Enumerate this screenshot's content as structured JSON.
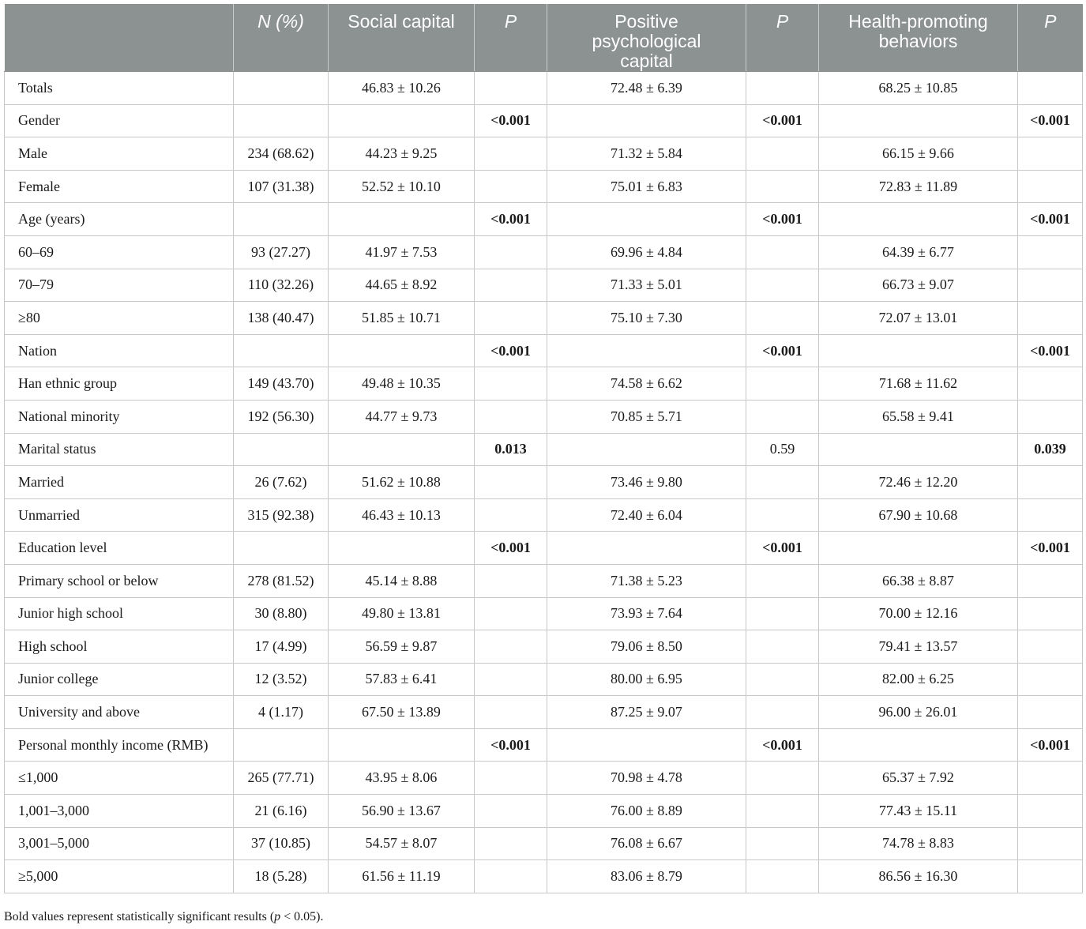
{
  "table": {
    "headers": [
      "",
      "N (%)",
      "Social capital",
      "P",
      "Positive psychological capital",
      "P",
      "Health-promoting behaviors",
      "P"
    ],
    "header_lines": [
      [
        ""
      ],
      [
        "N (%)"
      ],
      [
        "Social capital"
      ],
      [
        "P"
      ],
      [
        "Positive",
        "psychological",
        "capital"
      ],
      [
        "P"
      ],
      [
        "Health-promoting",
        "behaviors"
      ],
      [
        "P"
      ]
    ],
    "rows": [
      {
        "cells": [
          "Totals",
          "",
          "46.83 ± 10.26",
          "",
          "72.48 ± 6.39",
          "",
          "68.25 ± 10.85",
          ""
        ],
        "bold": []
      },
      {
        "cells": [
          "Gender",
          "",
          "",
          "<0.001",
          "",
          "<0.001",
          "",
          "<0.001"
        ],
        "bold": [
          3,
          5,
          7
        ]
      },
      {
        "cells": [
          "Male",
          "234 (68.62)",
          "44.23 ± 9.25",
          "",
          "71.32 ± 5.84",
          "",
          "66.15 ± 9.66",
          ""
        ],
        "bold": []
      },
      {
        "cells": [
          "Female",
          "107 (31.38)",
          "52.52 ± 10.10",
          "",
          "75.01 ± 6.83",
          "",
          "72.83 ± 11.89",
          ""
        ],
        "bold": []
      },
      {
        "cells": [
          "Age (years)",
          "",
          "",
          "<0.001",
          "",
          "<0.001",
          "",
          "<0.001"
        ],
        "bold": [
          3,
          5,
          7
        ]
      },
      {
        "cells": [
          "60–69",
          "93 (27.27)",
          "41.97 ± 7.53",
          "",
          "69.96 ± 4.84",
          "",
          "64.39 ± 6.77",
          ""
        ],
        "bold": []
      },
      {
        "cells": [
          "70–79",
          "110 (32.26)",
          "44.65 ± 8.92",
          "",
          "71.33 ± 5.01",
          "",
          "66.73 ± 9.07",
          ""
        ],
        "bold": []
      },
      {
        "cells": [
          "≥80",
          "138 (40.47)",
          "51.85 ± 10.71",
          "",
          "75.10 ± 7.30",
          "",
          "72.07 ± 13.01",
          ""
        ],
        "bold": []
      },
      {
        "cells": [
          "Nation",
          "",
          "",
          "<0.001",
          "",
          "<0.001",
          "",
          "<0.001"
        ],
        "bold": [
          3,
          5,
          7
        ]
      },
      {
        "cells": [
          "Han ethnic group",
          "149 (43.70)",
          "49.48 ± 10.35",
          "",
          "74.58 ± 6.62",
          "",
          "71.68 ± 11.62",
          ""
        ],
        "bold": []
      },
      {
        "cells": [
          "National minority",
          "192 (56.30)",
          "44.77 ± 9.73",
          "",
          "70.85 ± 5.71",
          "",
          "65.58 ± 9.41",
          ""
        ],
        "bold": []
      },
      {
        "cells": [
          "Marital status",
          "",
          "",
          "0.013",
          "",
          "0.59",
          "",
          "0.039"
        ],
        "bold": [
          3,
          7
        ]
      },
      {
        "cells": [
          "Married",
          "26 (7.62)",
          "51.62 ± 10.88",
          "",
          "73.46 ± 9.80",
          "",
          "72.46 ± 12.20",
          ""
        ],
        "bold": []
      },
      {
        "cells": [
          "Unmarried",
          "315 (92.38)",
          "46.43 ± 10.13",
          "",
          "72.40 ± 6.04",
          "",
          "67.90 ± 10.68",
          ""
        ],
        "bold": []
      },
      {
        "cells": [
          "Education level",
          "",
          "",
          "<0.001",
          "",
          "<0.001",
          "",
          "<0.001"
        ],
        "bold": [
          3,
          5,
          7
        ]
      },
      {
        "cells": [
          "Primary school or below",
          "278 (81.52)",
          "45.14 ± 8.88",
          "",
          "71.38 ± 5.23",
          "",
          "66.38 ± 8.87",
          ""
        ],
        "bold": []
      },
      {
        "cells": [
          "Junior high school",
          "30 (8.80)",
          "49.80 ± 13.81",
          "",
          "73.93 ± 7.64",
          "",
          "70.00 ± 12.16",
          ""
        ],
        "bold": []
      },
      {
        "cells": [
          "High school",
          "17 (4.99)",
          "56.59 ± 9.87",
          "",
          "79.06 ± 8.50",
          "",
          "79.41 ± 13.57",
          ""
        ],
        "bold": []
      },
      {
        "cells": [
          "Junior college",
          "12 (3.52)",
          "57.83 ± 6.41",
          "",
          "80.00 ± 6.95",
          "",
          "82.00 ± 6.25",
          ""
        ],
        "bold": []
      },
      {
        "cells": [
          "University and above",
          "4 (1.17)",
          "67.50 ± 13.89",
          "",
          "87.25 ± 9.07",
          "",
          "96.00 ± 26.01",
          ""
        ],
        "bold": []
      },
      {
        "cells": [
          "Personal monthly income (RMB)",
          "",
          "",
          "<0.001",
          "",
          "<0.001",
          "",
          "<0.001"
        ],
        "bold": [
          3,
          5,
          7
        ]
      },
      {
        "cells": [
          "≤1,000",
          "265 (77.71)",
          "43.95 ± 8.06",
          "",
          "70.98 ± 4.78",
          "",
          "65.37 ± 7.92",
          ""
        ],
        "bold": []
      },
      {
        "cells": [
          "1,001–3,000",
          "21 (6.16)",
          "56.90 ± 13.67",
          "",
          "76.00 ± 8.89",
          "",
          "77.43 ± 15.11",
          ""
        ],
        "bold": []
      },
      {
        "cells": [
          "3,001–5,000",
          "37 (10.85)",
          "54.57 ± 8.07",
          "",
          "76.08 ± 6.67",
          "",
          "74.78 ± 8.83",
          ""
        ],
        "bold": []
      },
      {
        "cells": [
          "≥5,000",
          "18 (5.28)",
          "61.56 ± 11.19",
          "",
          "83.06 ± 8.79",
          "",
          "86.56 ± 16.30",
          ""
        ],
        "bold": []
      }
    ]
  },
  "footnote": {
    "before": "Bold values represent statistically significant results (",
    "var": "p",
    "after": " < 0.05)."
  },
  "colors": {
    "header_bg": "#8c9191",
    "header_text": "#ffffff",
    "border": "#c8c8c8"
  }
}
